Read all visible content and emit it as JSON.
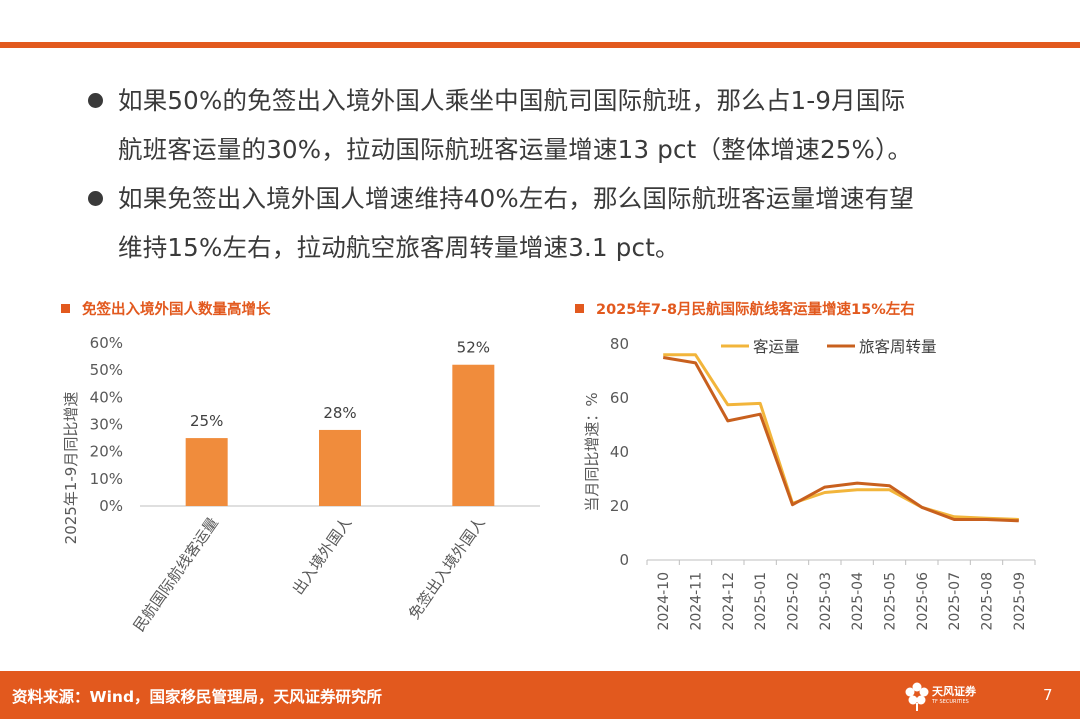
{
  "theme": {
    "accent": "#E2591E",
    "bar_color": "#F08C3C",
    "line1_color": "#F2B53B",
    "line2_color": "#C8601E",
    "grid_color": "#D9D9D9"
  },
  "bullets": [
    {
      "lines": [
        "如果50%的免签出入境外国人乘坐中国航司国际航班，那么占1-9月国际",
        "航班客运量的30%，拉动国际航班客运量增速13 pct（整体增速25%）。"
      ]
    },
    {
      "lines": [
        "如果免签出入境外国人增速维持40%左右，那么国际航班客运量增速有望",
        "维持15%左右，拉动航空旅客周转量增速3.1 pct。"
      ]
    }
  ],
  "left_chart": {
    "title": "免签出入境外国人数量高增长"
  },
  "right_chart": {
    "title": "2025年7-8月民航国际航线客运量增速15%左右"
  },
  "chart_data": [
    {
      "type": "bar",
      "title": "免签出入境外国人数量高增长",
      "categories": [
        "民航国际航线客运量",
        "出入境外国人",
        "免签出入境外国人"
      ],
      "values": [
        25,
        28,
        52
      ],
      "data_labels": [
        "25%",
        "28%",
        "52%"
      ],
      "ylabel": "2025年1-9月同比增速",
      "ylim": [
        0,
        60
      ],
      "yticks": [
        "0%",
        "10%",
        "20%",
        "30%",
        "40%",
        "50%",
        "60%"
      ],
      "grid": false
    },
    {
      "type": "line",
      "title": "2025年7-8月民航国际航线客运量增速15%左右",
      "x": [
        "2024-10",
        "2024-11",
        "2024-12",
        "2025-01",
        "2025-02",
        "2025-03",
        "2025-04",
        "2025-05",
        "2025-06",
        "2025-07",
        "2025-08",
        "2025-09"
      ],
      "series": [
        {
          "name": "客运量",
          "values": [
            76,
            76,
            57.5,
            58,
            21,
            25,
            26,
            26,
            19.5,
            16,
            15.5,
            15
          ]
        },
        {
          "name": "旅客周转量",
          "values": [
            75,
            73,
            51.5,
            54,
            20.5,
            27,
            28.5,
            27.5,
            19.5,
            15,
            15,
            14.5
          ]
        }
      ],
      "ylabel": "当月同比增速：%",
      "ylim": [
        0,
        80
      ],
      "yticks": [
        "0",
        "20",
        "40",
        "60",
        "80"
      ],
      "legend": "top",
      "grid": false
    }
  ],
  "footer": {
    "source": "资料来源：Wind，国家移民管理局，天风证券研究所",
    "logo_text": "天风证券",
    "logo_sub": "TF SECURITIES",
    "page_number": "7"
  }
}
